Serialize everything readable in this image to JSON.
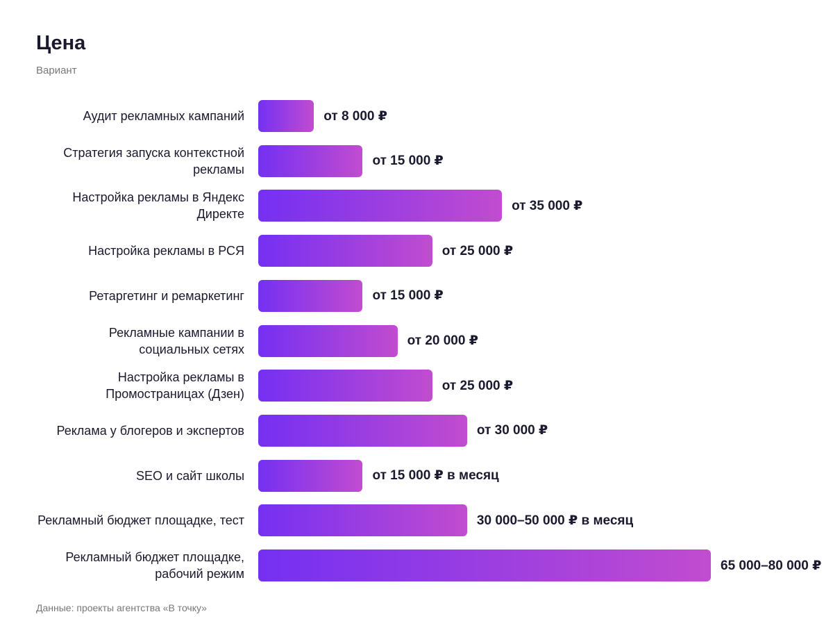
{
  "chart_data": {
    "type": "bar",
    "orientation": "horizontal",
    "title": "Цена",
    "subtitle": "Вариант",
    "source": "Данные: проекты агентства «В точку»",
    "categories": [
      "Аудит рекламных кампаний",
      "Стратегия запуска контекстной рекламы",
      "Настройка рекламы в Яндекс Директе",
      "Настройка рекламы в РСЯ",
      "Ретаргетинг и ремаркетинг",
      "Рекламные кампании в социальных сетях",
      "Настройка рекламы в Промостраницах (Дзен)",
      "Реклама у блогеров и экспертов",
      "SEO и сайт школы",
      "Рекламный бюджет площадке, тест",
      "Рекламный бюджет площадке, рабочий режим"
    ],
    "values": [
      8000,
      15000,
      35000,
      25000,
      15000,
      20000,
      25000,
      30000,
      15000,
      30000,
      65000
    ],
    "value_labels": [
      "от 8 000 ₽",
      "от 15 000 ₽",
      "от 35 000 ₽",
      "от 25 000 ₽",
      "от 15 000 ₽",
      "от 20 000 ₽",
      "от 25 000 ₽",
      "от 30 000 ₽",
      "от 15 000 ₽ в месяц",
      "30 000–50 000 ₽ в месяц",
      "65 000–80 000 ₽"
    ]
  }
}
